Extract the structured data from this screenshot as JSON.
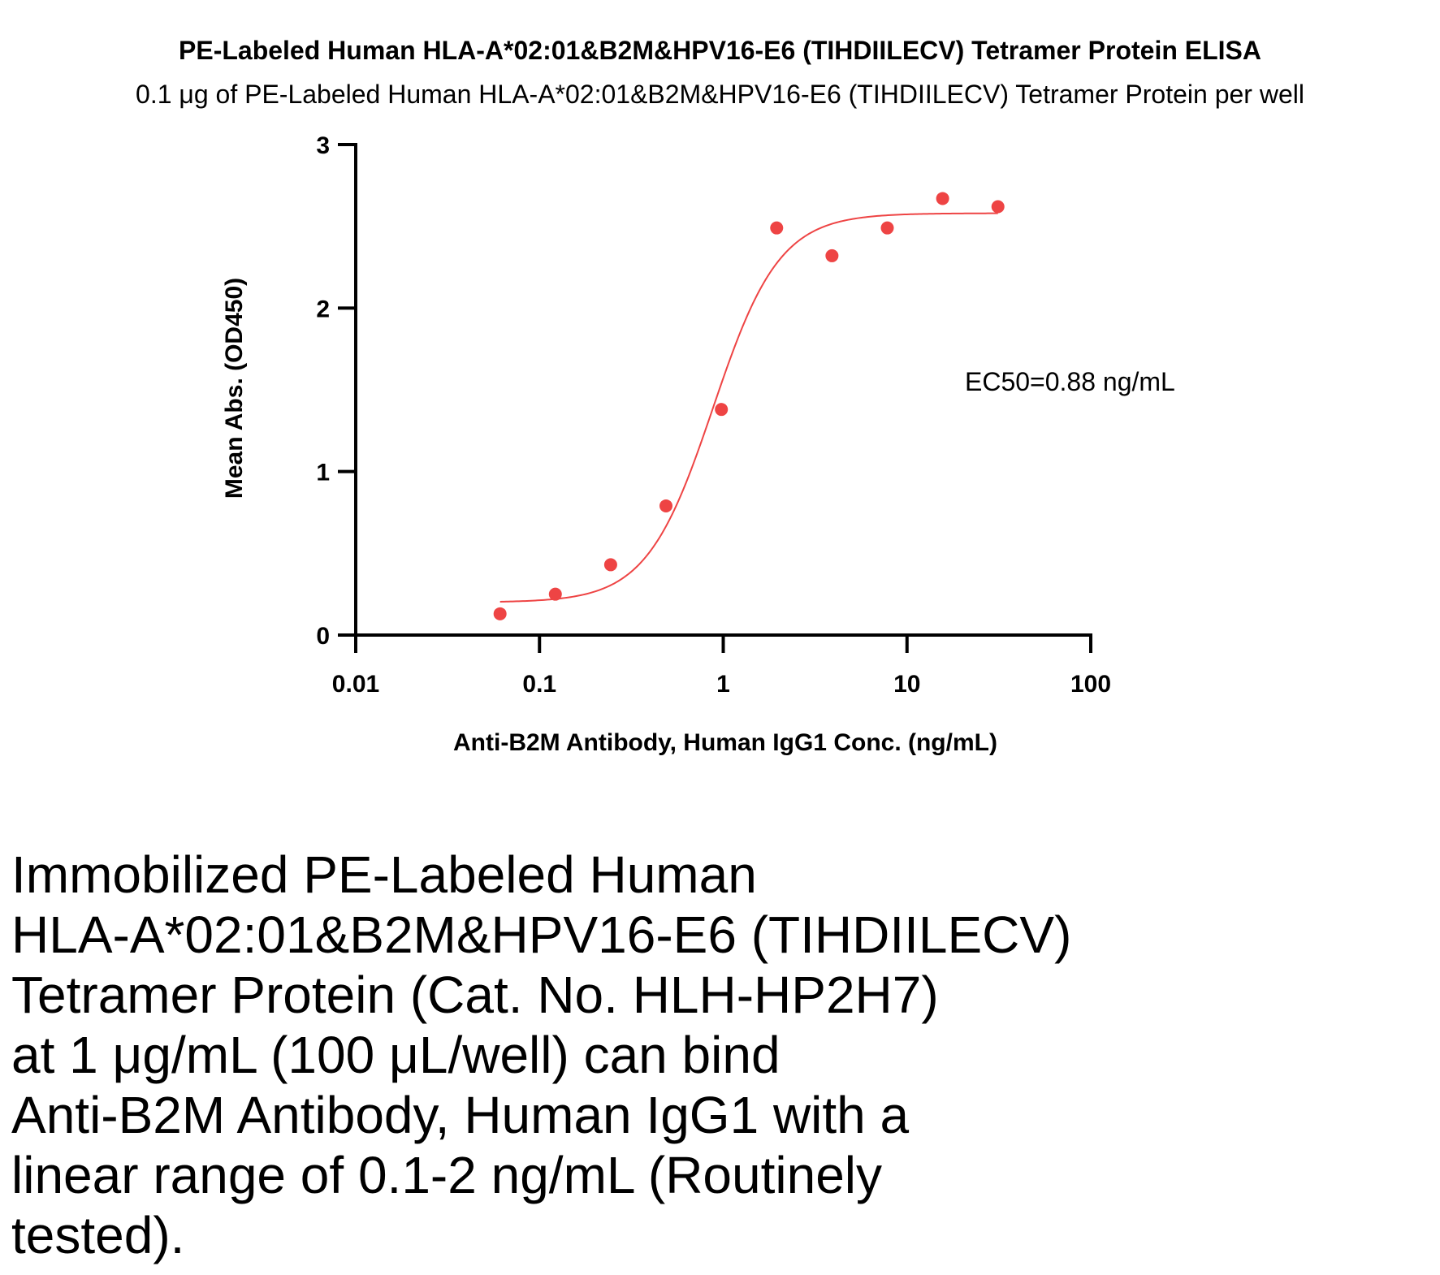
{
  "chart_data": {
    "type": "scatter",
    "title": "PE-Labeled Human HLA-A*02:01&B2M&HPV16-E6 (TIHDIILECV) Tetramer Protein ELISA",
    "subtitle": "0.1 μg of PE-Labeled Human HLA-A*02:01&B2M&HPV16-E6 (TIHDIILECV) Tetramer Protein per well",
    "xlabel": "Anti-B2M Antibody, Human IgG1 Conc. (ng/mL)",
    "ylabel": "Mean Abs. (OD450)",
    "xscale": "log",
    "xlim": [
      0.01,
      100
    ],
    "ylim": [
      0,
      3
    ],
    "x_ticks": [
      0.01,
      0.1,
      1,
      10,
      100
    ],
    "x_tick_labels": [
      "0.01",
      "0.1",
      "1",
      "10",
      "100"
    ],
    "y_ticks": [
      0,
      1,
      2,
      3
    ],
    "y_tick_labels": [
      "0",
      "1",
      "2",
      "3"
    ],
    "grid": false,
    "color": "#ee4444",
    "points": {
      "x": [
        0.061,
        0.122,
        0.244,
        0.488,
        0.977,
        1.953,
        3.906,
        7.813,
        15.625,
        31.25
      ],
      "y": [
        0.13,
        0.25,
        0.43,
        0.79,
        1.38,
        2.49,
        2.32,
        2.49,
        2.67,
        2.62
      ]
    },
    "fit": {
      "model": "4PL",
      "bottom": 0.2,
      "top": 2.58,
      "ec50": 0.88,
      "hill": 2.4,
      "x_range": [
        0.061,
        31.25
      ]
    },
    "annotation": "EC50=0.88 ng/mL"
  },
  "caption_lines": [
    "Immobilized PE-Labeled Human",
    "HLA-A*02:01&B2M&HPV16-E6 (TIHDIILECV)",
    "Tetramer Protein (Cat. No. HLH-HP2H7)",
    "at 1 μg/mL (100 μL/well) can bind",
    "Anti-B2M Antibody, Human IgG1 with a",
    "linear range of 0.1-2 ng/mL (Routinely",
    "tested)."
  ]
}
